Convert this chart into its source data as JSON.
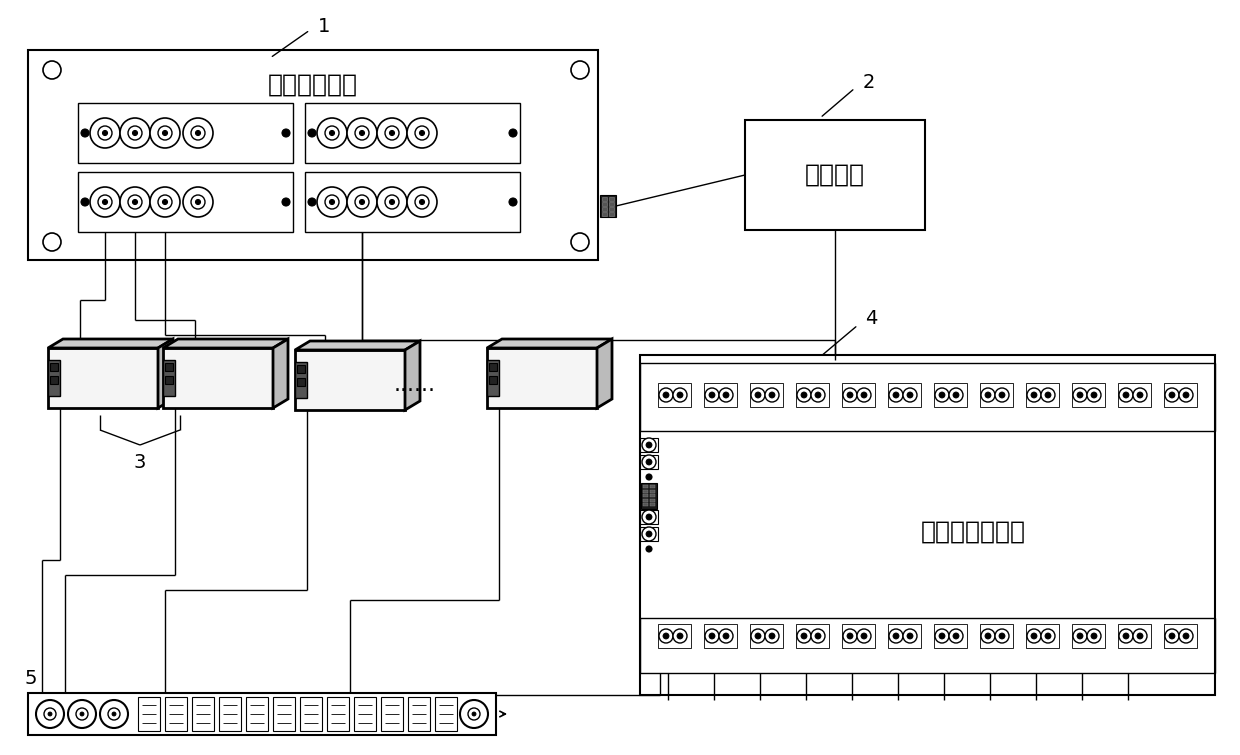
{
  "bg_color": "#ffffff",
  "label1": "多通道分析仪",
  "label2": "控制单元",
  "label3": "3",
  "label4": "多路继电器开关",
  "label5": "5",
  "ref1": "1",
  "ref2": "2",
  "ref4": "4",
  "dots_text": "......",
  "font_size_label": 16,
  "font_size_ref": 13,
  "font_size_small": 10
}
